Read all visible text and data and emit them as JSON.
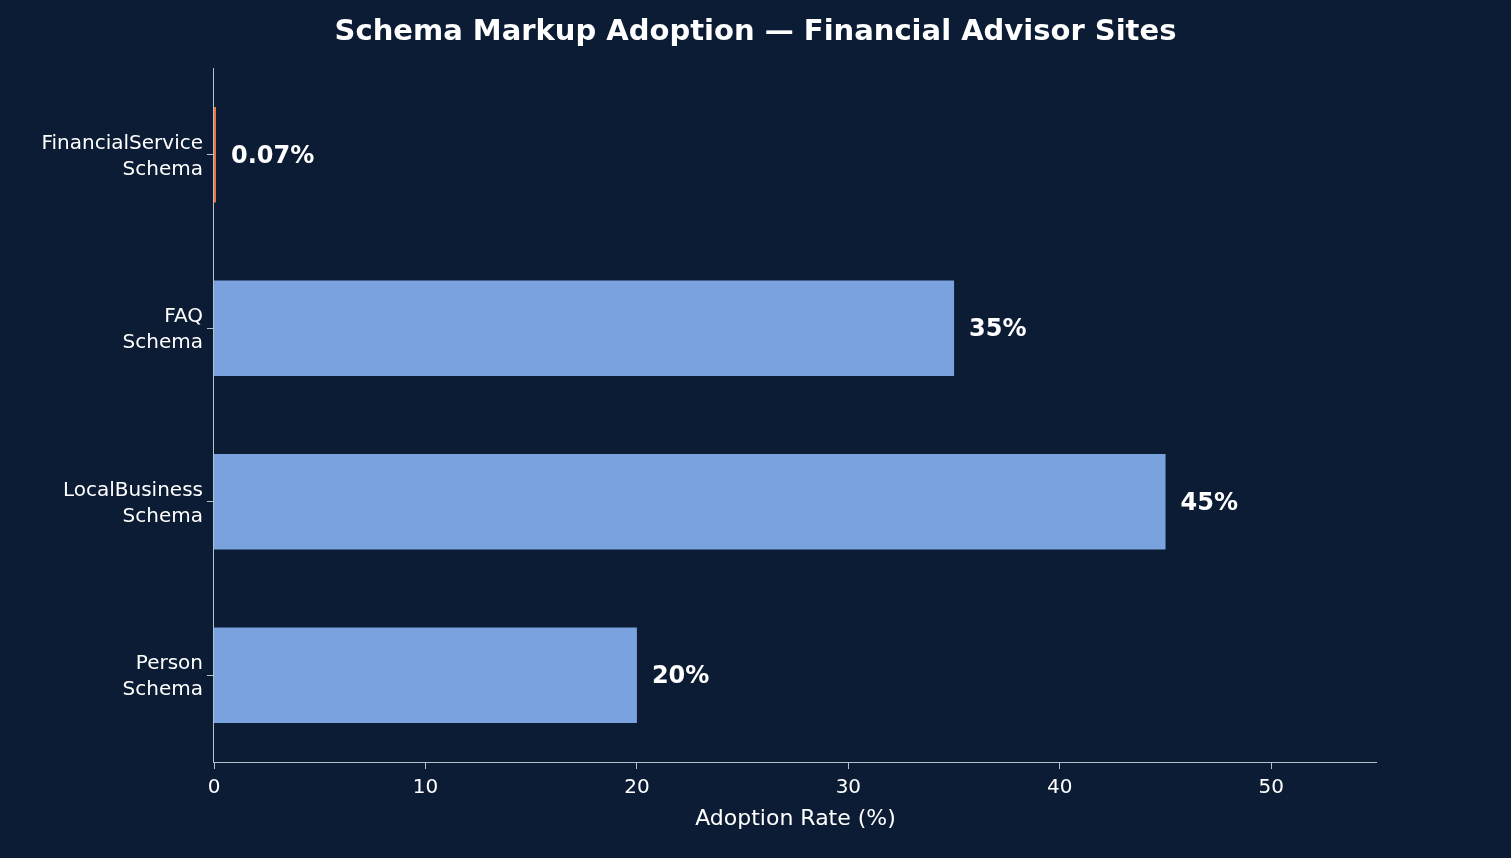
{
  "chart_data": {
    "type": "bar",
    "orientation": "horizontal",
    "title": "Schema Markup Adoption — Financial Advisor Sites",
    "xlabel": "Adoption Rate (%)",
    "categories": [
      "FinancialService\nSchema",
      "FAQ\nSchema",
      "LocalBusiness\nSchema",
      "Person\nSchema"
    ],
    "values": [
      0.07,
      35,
      45,
      20
    ],
    "colors": [
      "#e8743b",
      "#7aa2de",
      "#7aa2de",
      "#7aa2de"
    ],
    "value_labels": [
      "0.07%",
      "35%",
      "45%",
      "20%"
    ],
    "xlim": [
      0,
      55
    ],
    "xticks": [
      0,
      10,
      20,
      30,
      40,
      50
    ],
    "grid": false
  }
}
